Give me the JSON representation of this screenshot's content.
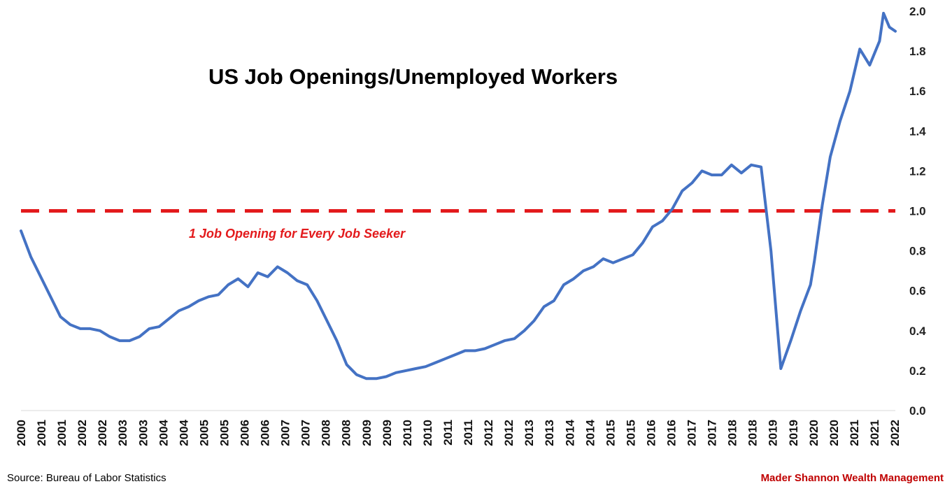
{
  "chart_data": {
    "type": "line",
    "title": "US Job Openings/Unemployed Workers",
    "xlabel": "",
    "ylabel": "",
    "ylim": [
      0,
      2.0
    ],
    "y_ticks": [
      "0.0",
      "0.2",
      "0.4",
      "0.6",
      "0.8",
      "1.0",
      "1.2",
      "1.4",
      "1.6",
      "1.8",
      "2.0"
    ],
    "y_axis_side": "right",
    "x_ticks": [
      "2000",
      "2001",
      "2001",
      "2002",
      "2002",
      "2003",
      "2003",
      "2004",
      "2004",
      "2005",
      "2005",
      "2006",
      "2006",
      "2007",
      "2007",
      "2008",
      "2008",
      "2009",
      "2009",
      "2010",
      "2010",
      "2011",
      "2011",
      "2012",
      "2012",
      "2013",
      "2013",
      "2014",
      "2014",
      "2015",
      "2015",
      "2016",
      "2016",
      "2017",
      "2017",
      "2018",
      "2018",
      "2019",
      "2019",
      "2020",
      "2020",
      "2021",
      "2021",
      "2022"
    ],
    "grid": false,
    "reference_line": {
      "value": 1.0,
      "label": "1 Job Opening for Every Job Seeker",
      "color": "#e31a1c",
      "style": "dashed"
    },
    "series": [
      {
        "color": "#4472c4",
        "x": [
          2000.0,
          2000.25,
          2000.5,
          2000.75,
          2001.0,
          2001.25,
          2001.5,
          2001.75,
          2002.0,
          2002.25,
          2002.5,
          2002.75,
          2003.0,
          2003.25,
          2003.5,
          2003.75,
          2004.0,
          2004.25,
          2004.5,
          2004.75,
          2005.0,
          2005.25,
          2005.5,
          2005.75,
          2006.0,
          2006.25,
          2006.5,
          2006.75,
          2007.0,
          2007.25,
          2007.5,
          2007.75,
          2008.0,
          2008.25,
          2008.5,
          2008.75,
          2009.0,
          2009.25,
          2009.5,
          2009.75,
          2010.0,
          2010.25,
          2010.5,
          2010.75,
          2011.0,
          2011.25,
          2011.5,
          2011.75,
          2012.0,
          2012.25,
          2012.5,
          2012.75,
          2013.0,
          2013.25,
          2013.5,
          2013.75,
          2014.0,
          2014.25,
          2014.5,
          2014.75,
          2015.0,
          2015.25,
          2015.5,
          2015.75,
          2016.0,
          2016.25,
          2016.5,
          2016.75,
          2017.0,
          2017.25,
          2017.5,
          2017.75,
          2018.0,
          2018.25,
          2018.5,
          2018.75,
          2019.0,
          2019.25,
          2019.5,
          2019.75,
          2020.0,
          2020.1,
          2020.3,
          2020.5,
          2020.75,
          2021.0,
          2021.25,
          2021.5,
          2021.75,
          2021.85,
          2022.0,
          2022.15
        ],
        "values": [
          0.9,
          0.77,
          0.67,
          0.57,
          0.47,
          0.43,
          0.41,
          0.41,
          0.4,
          0.37,
          0.35,
          0.35,
          0.37,
          0.41,
          0.42,
          0.46,
          0.5,
          0.52,
          0.55,
          0.57,
          0.58,
          0.63,
          0.66,
          0.62,
          0.69,
          0.67,
          0.72,
          0.69,
          0.65,
          0.63,
          0.55,
          0.45,
          0.35,
          0.23,
          0.18,
          0.16,
          0.16,
          0.17,
          0.19,
          0.2,
          0.21,
          0.22,
          0.24,
          0.26,
          0.28,
          0.3,
          0.3,
          0.31,
          0.33,
          0.35,
          0.36,
          0.4,
          0.45,
          0.52,
          0.55,
          0.63,
          0.66,
          0.7,
          0.72,
          0.76,
          0.74,
          0.76,
          0.78,
          0.84,
          0.92,
          0.95,
          1.01,
          1.1,
          1.14,
          1.2,
          1.18,
          1.18,
          1.23,
          1.19,
          1.23,
          1.22,
          0.8,
          0.21,
          0.35,
          0.5,
          0.63,
          0.75,
          1.03,
          1.27,
          1.45,
          1.6,
          1.81,
          1.73,
          1.85,
          1.99,
          1.92,
          1.9
        ]
      }
    ]
  },
  "source": "Source: Bureau of Labor Statistics",
  "brand": "Mader Shannon Wealth Management",
  "colors": {
    "line": "#4472c4",
    "reference": "#e31a1c",
    "brand": "#c00000"
  }
}
